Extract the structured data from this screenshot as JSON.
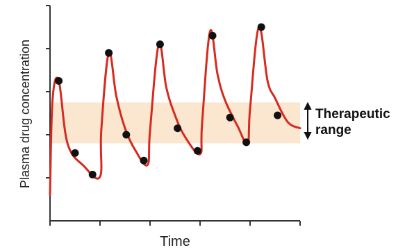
{
  "chart_data": {
    "type": "line",
    "xlabel": "Time",
    "ylabel": "Plasma drug concentration",
    "xlim": [
      0,
      10
    ],
    "ylim": [
      0,
      10
    ],
    "grid": false,
    "therapeutic_range": {
      "label_line1": "Therapeutic",
      "label_line2": "range",
      "low": 3.6,
      "high": 5.5,
      "color": "#fbe6d0"
    },
    "series": [
      {
        "color": "#d62a1f",
        "curve": [
          [
            0.0,
            1.2
          ],
          [
            0.1,
            5.6
          ],
          [
            0.35,
            6.5
          ],
          [
            0.7,
            3.6
          ],
          [
            1.35,
            2.55
          ],
          [
            2.0,
            2.05
          ],
          [
            2.05,
            4.2
          ],
          [
            2.35,
            7.8
          ],
          [
            2.65,
            5.8
          ],
          [
            3.0,
            4.3
          ],
          [
            3.4,
            3.3
          ],
          [
            3.9,
            2.6
          ],
          [
            4.0,
            4.2
          ],
          [
            4.35,
            8.2
          ],
          [
            4.65,
            6.2
          ],
          [
            5.0,
            4.9
          ],
          [
            5.4,
            3.9
          ],
          [
            6.0,
            3.1
          ],
          [
            6.08,
            4.5
          ],
          [
            6.4,
            8.8
          ],
          [
            6.7,
            6.8
          ],
          [
            7.0,
            5.6
          ],
          [
            7.5,
            4.4
          ],
          [
            7.9,
            3.6
          ],
          [
            8.0,
            5.2
          ],
          [
            8.35,
            9.0
          ],
          [
            8.7,
            6.5
          ],
          [
            9.0,
            5.7
          ],
          [
            9.5,
            4.6
          ],
          [
            10.0,
            4.3
          ]
        ],
        "points": [
          [
            0.35,
            6.5
          ],
          [
            1.0,
            3.15
          ],
          [
            1.7,
            2.15
          ],
          [
            2.35,
            7.8
          ],
          [
            3.05,
            4.0
          ],
          [
            3.75,
            2.8
          ],
          [
            4.4,
            8.2
          ],
          [
            5.1,
            4.3
          ],
          [
            5.9,
            3.25
          ],
          [
            6.5,
            8.6
          ],
          [
            7.2,
            4.8
          ],
          [
            7.85,
            3.65
          ],
          [
            8.45,
            9.0
          ],
          [
            9.1,
            4.9
          ]
        ]
      }
    ]
  }
}
